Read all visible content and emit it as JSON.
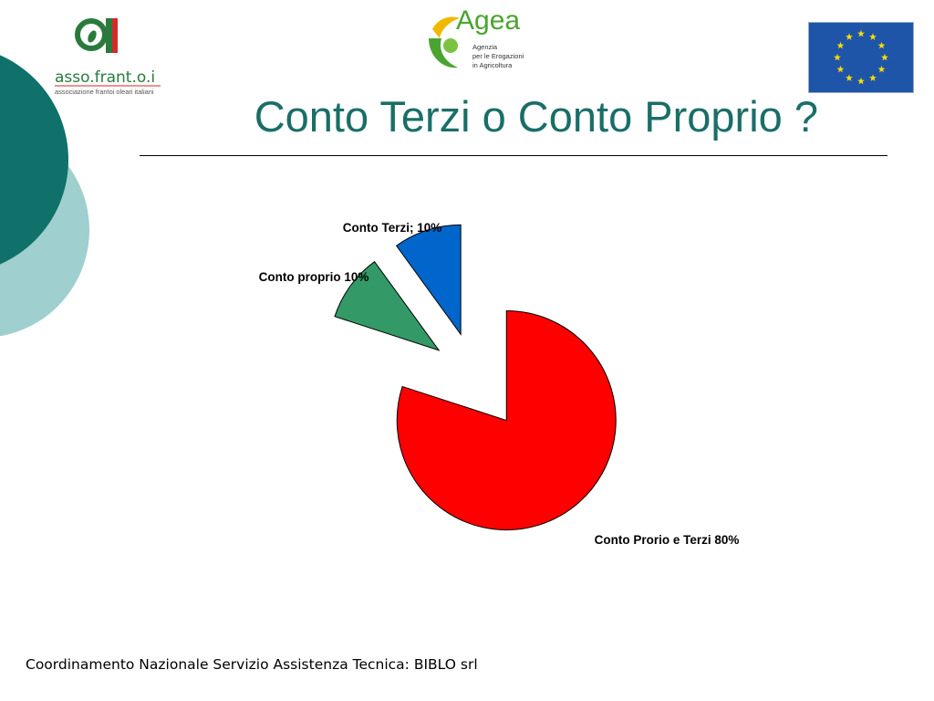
{
  "slide": {
    "title": "Conto Terzi o Conto Proprio ?",
    "footer": "Coordinamento Nazionale Servizio Assistenza Tecnica: BIBLO srl"
  },
  "logos": {
    "assofrantoi": {
      "mark": "a",
      "name": "asso.frant.o.i",
      "tagline": "associazione frantoi oleari italiani"
    },
    "agea": {
      "name": "Agea",
      "lines": [
        "Agenzia",
        "per le Erogazioni",
        "in Agricoltura"
      ]
    },
    "eu": {
      "icon": "eu-flag-icon"
    }
  },
  "colors": {
    "title": "#1a6e68",
    "deco_dark": "#10706a",
    "deco_light": "#9fcfcf",
    "eu_blue": "#1e55a8",
    "eu_star": "#ffdd00",
    "agea_green": "#49a530",
    "agea_yellow": "#f1b800",
    "asso_green": "#2a7a3c",
    "asso_red": "#d42a2a"
  },
  "chart_data": {
    "type": "pie",
    "exploded": true,
    "slices": [
      {
        "label": "Conto Prorio e Terzi 80%",
        "value": 80,
        "color": "#ff0000"
      },
      {
        "label": "Conto proprio 10%",
        "value": 10,
        "color": "#339966"
      },
      {
        "label": "Conto Terzi; 10%",
        "value": 10,
        "color": "#0066cc"
      }
    ]
  }
}
